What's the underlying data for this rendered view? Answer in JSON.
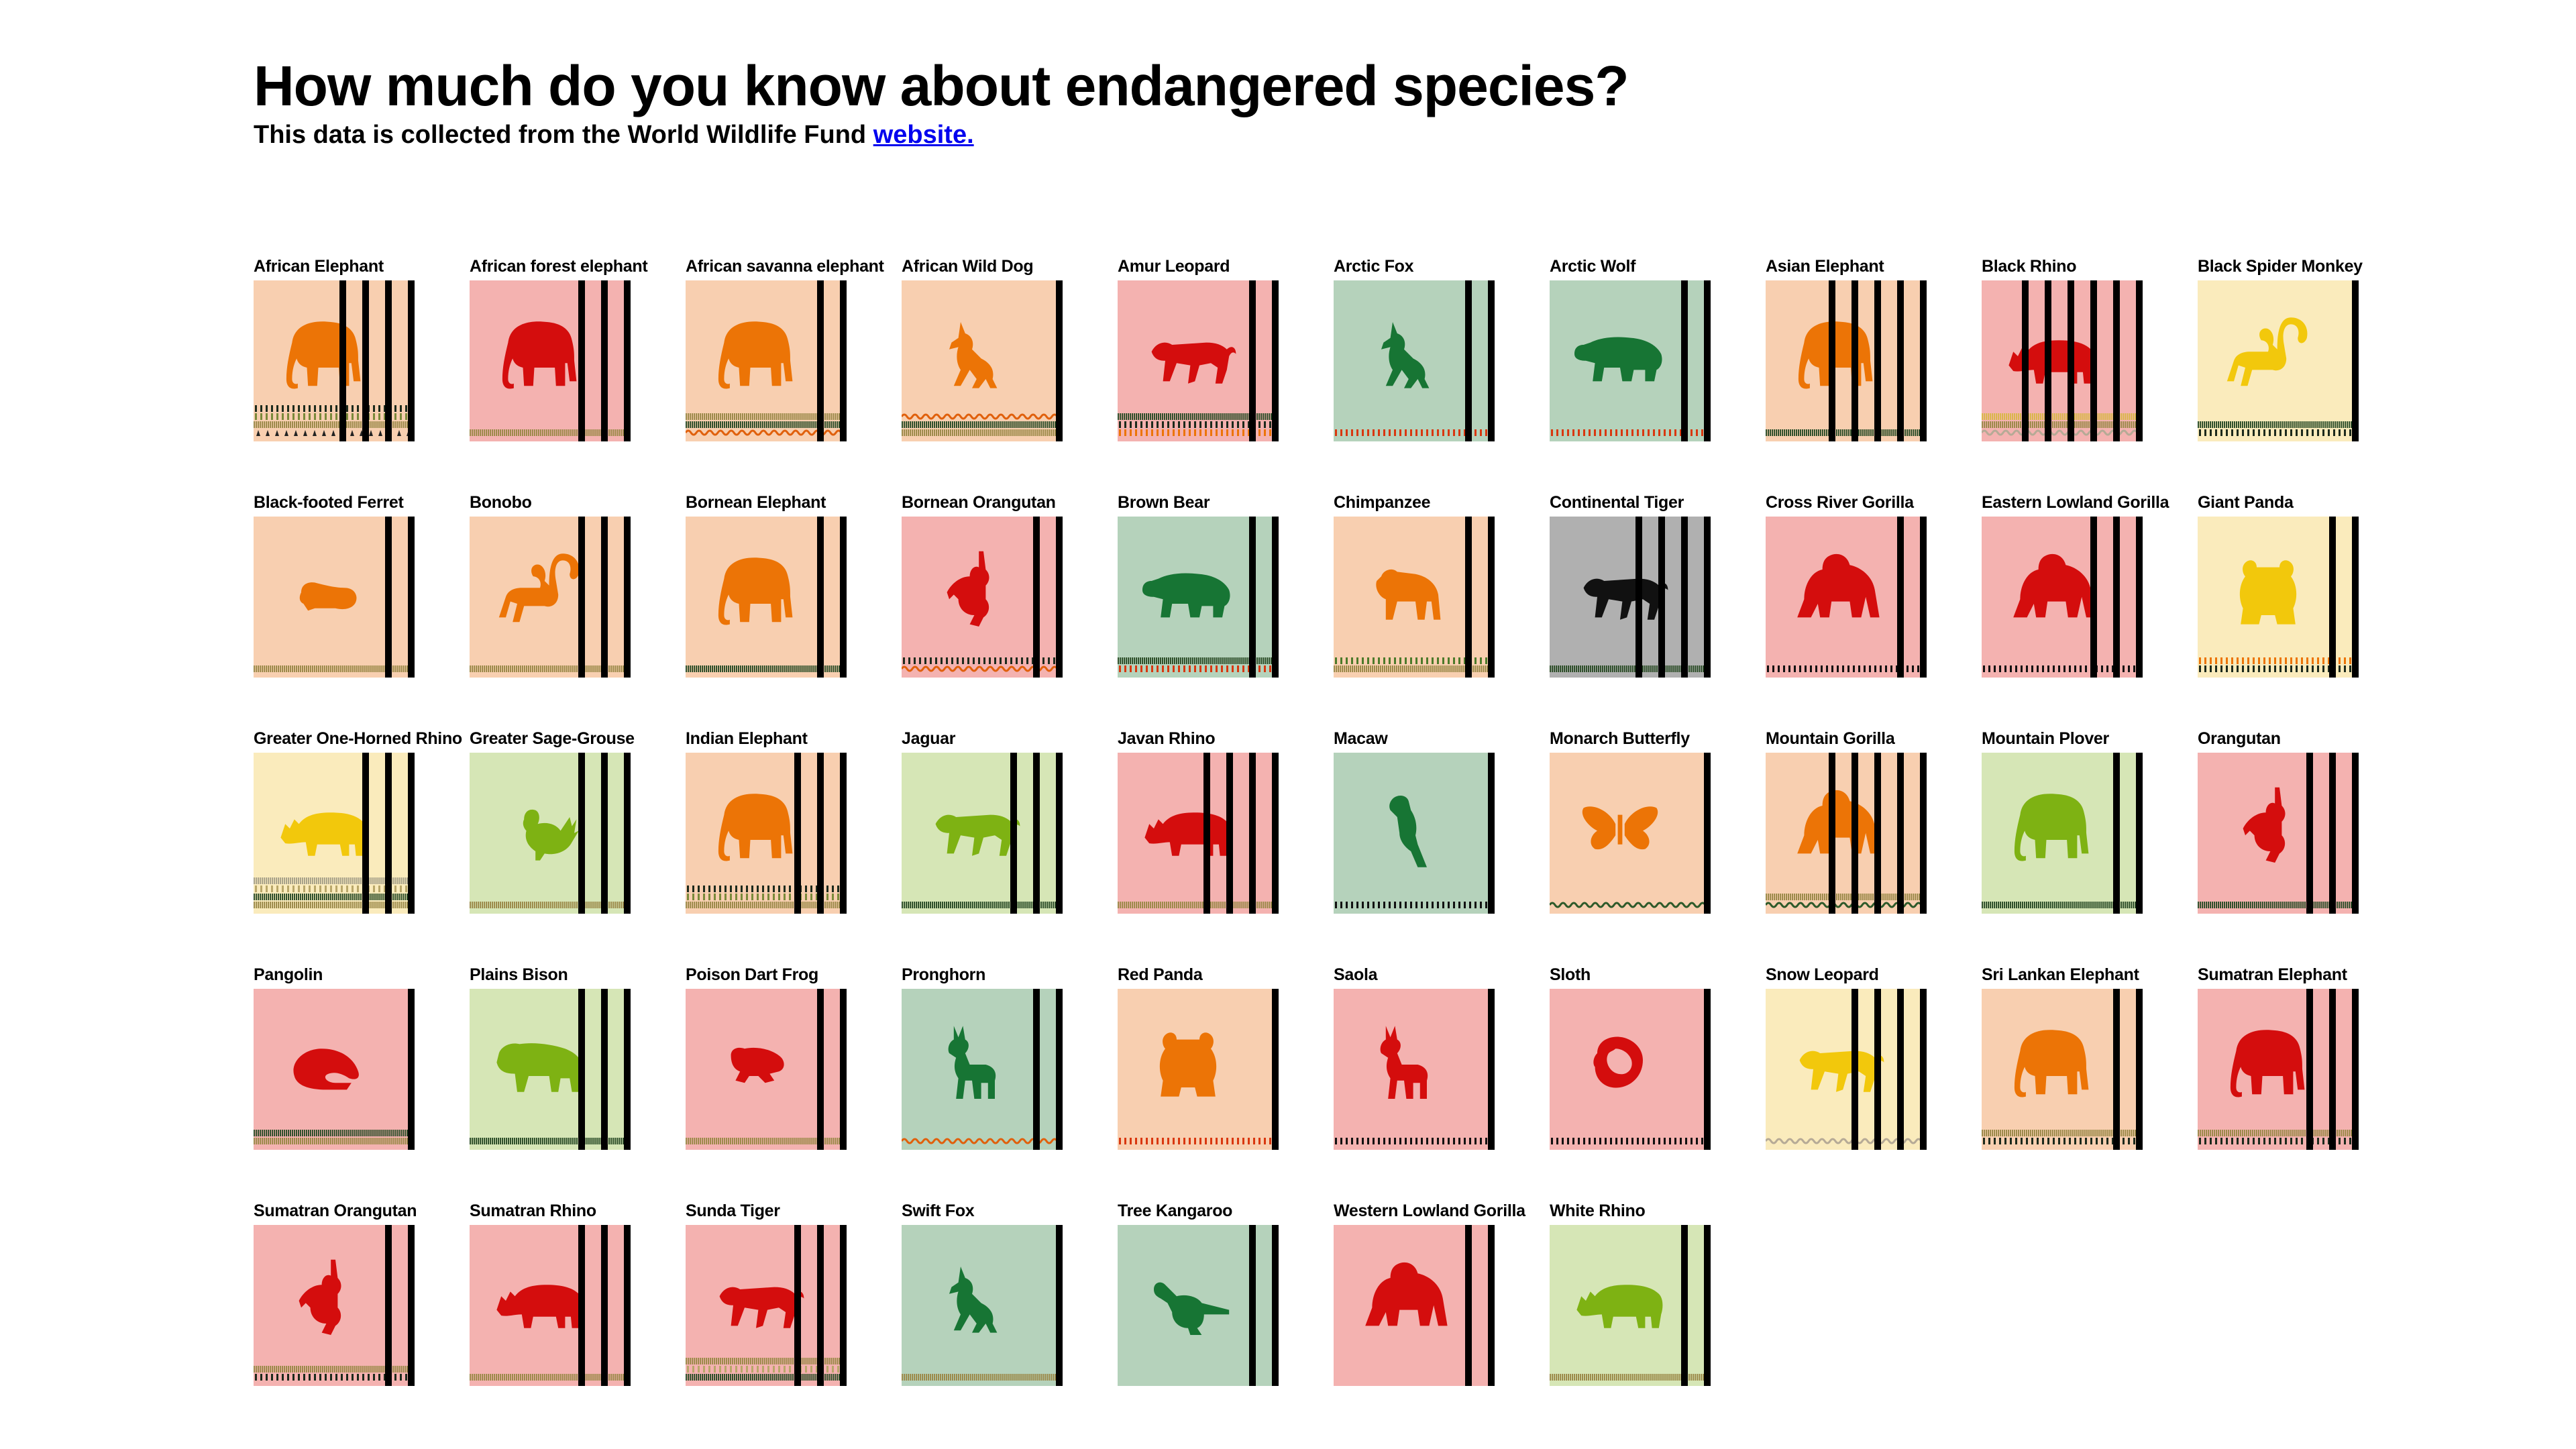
{
  "header": {
    "title": "How much do you know about endangered species?",
    "subtitle_text": "This data is collected from the World Wildlife Fund ",
    "subtitle_link": "website."
  },
  "colors": {
    "critically_endangered": {
      "bg": "#f4b2b0",
      "fg": "#d40d0d"
    },
    "endangered": {
      "bg": "#f8cfb0",
      "fg": "#ec7406"
    },
    "vulnerable": {
      "bg": "#faebbc",
      "fg": "#f2c80c"
    },
    "near_threatened": {
      "bg": "#d6e6b6",
      "fg": "#7eb213"
    },
    "least_concern": {
      "bg": "#b5d2bb",
      "fg": "#177534"
    },
    "data_deficient": {
      "bg": "#b0b0b0",
      "fg": "#111111"
    }
  },
  "species": [
    {
      "name": "African Elephant",
      "status": "endangered",
      "icon": "elephant-icon",
      "bars": 4,
      "ground": [
        "arrows",
        "stripe-tan",
        "dash-mixed",
        "dash-dark"
      ]
    },
    {
      "name": "African forest elephant",
      "status": "critically_endangered",
      "icon": "elephant-icon",
      "bars": 3,
      "ground": [
        "stripe-tan"
      ]
    },
    {
      "name": "African savanna elephant",
      "status": "endangered",
      "icon": "elephant-icon",
      "bars": 2,
      "ground": [
        "wave-orange",
        "stripe-dark",
        "stripe-tan"
      ]
    },
    {
      "name": "African Wild Dog",
      "status": "endangered",
      "icon": "wolf-icon",
      "bars": 1,
      "ground": [
        "stripe-tan",
        "stripe-dark",
        "wave-orange"
      ]
    },
    {
      "name": "Amur Leopard",
      "status": "critically_endangered",
      "icon": "big-cat-icon",
      "bars": 2,
      "ground": [
        "dash-orange",
        "dash-dark",
        "stripe-dark"
      ]
    },
    {
      "name": "Arctic Fox",
      "status": "least_concern",
      "icon": "wolf-icon",
      "bars": 2,
      "ground": [
        "dash-red"
      ]
    },
    {
      "name": "Arctic Wolf",
      "status": "least_concern",
      "icon": "bear-icon",
      "bars": 2,
      "ground": [
        "dash-red"
      ]
    },
    {
      "name": "Asian Elephant",
      "status": "endangered",
      "icon": "elephant-icon",
      "bars": 5,
      "ground": [
        "stripe-dark"
      ]
    },
    {
      "name": "Black Rhino",
      "status": "critically_endangered",
      "icon": "rhino-icon",
      "bars": 6,
      "ground": [
        "wave-grey",
        "stripe-tan",
        "stripe-yellow"
      ]
    },
    {
      "name": "Black Spider Monkey",
      "status": "vulnerable",
      "icon": "monkey-icon",
      "bars": 1,
      "ground": [
        "dash-dark",
        "stripe-dark"
      ]
    },
    {
      "name": "Black-footed Ferret",
      "status": "endangered",
      "icon": "ferret-icon",
      "bars": 2,
      "ground": [
        "stripe-tan"
      ]
    },
    {
      "name": "Bonobo",
      "status": "endangered",
      "icon": "monkey-icon",
      "bars": 3,
      "ground": [
        "stripe-tan"
      ]
    },
    {
      "name": "Bornean Elephant",
      "status": "endangered",
      "icon": "elephant-icon",
      "bars": 2,
      "ground": [
        "stripe-dark"
      ]
    },
    {
      "name": "Bornean Orangutan",
      "status": "critically_endangered",
      "icon": "orangutan-icon",
      "bars": 2,
      "ground": [
        "wave-orange",
        "dash-dark"
      ]
    },
    {
      "name": "Brown Bear",
      "status": "least_concern",
      "icon": "bear-icon",
      "bars": 2,
      "ground": [
        "dash-red",
        "stripe-dark"
      ]
    },
    {
      "name": "Chimpanzee",
      "status": "endangered",
      "icon": "ape-icon",
      "bars": 2,
      "ground": [
        "stripe-tan",
        "dash-green"
      ]
    },
    {
      "name": "Continental Tiger",
      "status": "data_deficient",
      "icon": "big-cat-icon",
      "bars": 4,
      "ground": [
        "stripe-dark"
      ]
    },
    {
      "name": "Cross River Gorilla",
      "status": "critically_endangered",
      "icon": "gorilla-icon",
      "bars": 2,
      "ground": [
        "dash-black"
      ]
    },
    {
      "name": "Eastern Lowland Gorilla",
      "status": "critically_endangered",
      "icon": "gorilla-icon",
      "bars": 3,
      "ground": [
        "dash-black"
      ]
    },
    {
      "name": "Giant Panda",
      "status": "vulnerable",
      "icon": "bear-face-icon",
      "bars": 2,
      "ground": [
        "dash-dark",
        "dash-orange"
      ]
    },
    {
      "name": "Greater One-Horned Rhino",
      "status": "vulnerable",
      "icon": "rhino-icon",
      "bars": 3,
      "ground": [
        "stripe-tan",
        "stripe-dark",
        "dash-tan",
        "stripe-grey"
      ]
    },
    {
      "name": "Greater Sage-Grouse",
      "status": "near_threatened",
      "icon": "grouse-icon",
      "bars": 3,
      "ground": [
        "stripe-tan"
      ]
    },
    {
      "name": "Indian Elephant",
      "status": "endangered",
      "icon": "elephant-icon",
      "bars": 3,
      "ground": [
        "stripe-tan",
        "dash-mixed",
        "dash-dark"
      ]
    },
    {
      "name": "Jaguar",
      "status": "near_threatened",
      "icon": "big-cat-icon",
      "bars": 3,
      "ground": [
        "stripe-dark"
      ]
    },
    {
      "name": "Javan Rhino",
      "status": "critically_endangered",
      "icon": "rhino-icon",
      "bars": 4,
      "ground": [
        "stripe-tan"
      ]
    },
    {
      "name": "Macaw",
      "status": "least_concern",
      "icon": "parrot-icon",
      "bars": 1,
      "ground": [
        "dash-black"
      ]
    },
    {
      "name": "Monarch Butterfly",
      "status": "endangered",
      "icon": "butterfly-icon",
      "bars": 1,
      "ground": [
        "wave-dark"
      ]
    },
    {
      "name": "Mountain Gorilla",
      "status": "endangered",
      "icon": "gorilla-icon",
      "bars": 5,
      "ground": [
        "wave-dark",
        "stripe-tan"
      ]
    },
    {
      "name": "Mountain Plover",
      "status": "near_threatened",
      "icon": "elephant-icon",
      "bars": 2,
      "ground": [
        "stripe-dark"
      ]
    },
    {
      "name": "Orangutan",
      "status": "critically_endangered",
      "icon": "orangutan-icon",
      "bars": 3,
      "ground": [
        "stripe-dark"
      ]
    },
    {
      "name": "Pangolin",
      "status": "critically_endangered",
      "icon": "pangolin-icon",
      "bars": 1,
      "ground": [
        "stripe-tan",
        "stripe-dark"
      ]
    },
    {
      "name": "Plains Bison",
      "status": "near_threatened",
      "icon": "bison-icon",
      "bars": 3,
      "ground": [
        "stripe-dark"
      ]
    },
    {
      "name": "Poison Dart Frog",
      "status": "critically_endangered",
      "icon": "frog-icon",
      "bars": 2,
      "ground": [
        "stripe-tan"
      ]
    },
    {
      "name": "Pronghorn",
      "status": "least_concern",
      "icon": "deer-icon",
      "bars": 2,
      "ground": [
        "wave-orange"
      ]
    },
    {
      "name": "Red Panda",
      "status": "endangered",
      "icon": "bear-face-icon",
      "bars": 1,
      "ground": [
        "dash-red"
      ]
    },
    {
      "name": "Saola",
      "status": "critically_endangered",
      "icon": "deer-icon",
      "bars": 1,
      "ground": [
        "dash-black"
      ]
    },
    {
      "name": "Sloth",
      "status": "critically_endangered",
      "icon": "sloth-icon",
      "bars": 1,
      "ground": [
        "dash-black"
      ]
    },
    {
      "name": "Snow Leopard",
      "status": "vulnerable",
      "icon": "big-cat-icon",
      "bars": 4,
      "ground": [
        "wave-grey"
      ]
    },
    {
      "name": "Sri Lankan Elephant",
      "status": "endangered",
      "icon": "elephant-icon",
      "bars": 2,
      "ground": [
        "dash-dark",
        "stripe-tan"
      ]
    },
    {
      "name": "Sumatran Elephant",
      "status": "critically_endangered",
      "icon": "elephant-icon",
      "bars": 3,
      "ground": [
        "dash-dark",
        "stripe-tan"
      ]
    },
    {
      "name": "Sumatran Orangutan",
      "status": "critically_endangered",
      "icon": "orangutan-icon",
      "bars": 2,
      "ground": [
        "dash-dark",
        "stripe-tan"
      ]
    },
    {
      "name": "Sumatran Rhino",
      "status": "critically_endangered",
      "icon": "rhino-icon",
      "bars": 3,
      "ground": [
        "stripe-tan"
      ]
    },
    {
      "name": "Sunda Tiger",
      "status": "critically_endangered",
      "icon": "big-cat-icon",
      "bars": 3,
      "ground": [
        "stripe-dark",
        "dash-tan",
        "stripe-tan"
      ]
    },
    {
      "name": "Swift Fox",
      "status": "least_concern",
      "icon": "wolf-icon",
      "bars": 1,
      "ground": [
        "stripe-tan"
      ]
    },
    {
      "name": "Tree Kangaroo",
      "status": "least_concern",
      "icon": "kangaroo-icon",
      "bars": 2,
      "ground": []
    },
    {
      "name": "Western Lowland Gorilla",
      "status": "critically_endangered",
      "icon": "gorilla-icon",
      "bars": 2,
      "ground": []
    },
    {
      "name": "White Rhino",
      "status": "near_threatened",
      "icon": "rhino-icon",
      "bars": 2,
      "ground": [
        "stripe-tan"
      ]
    }
  ]
}
